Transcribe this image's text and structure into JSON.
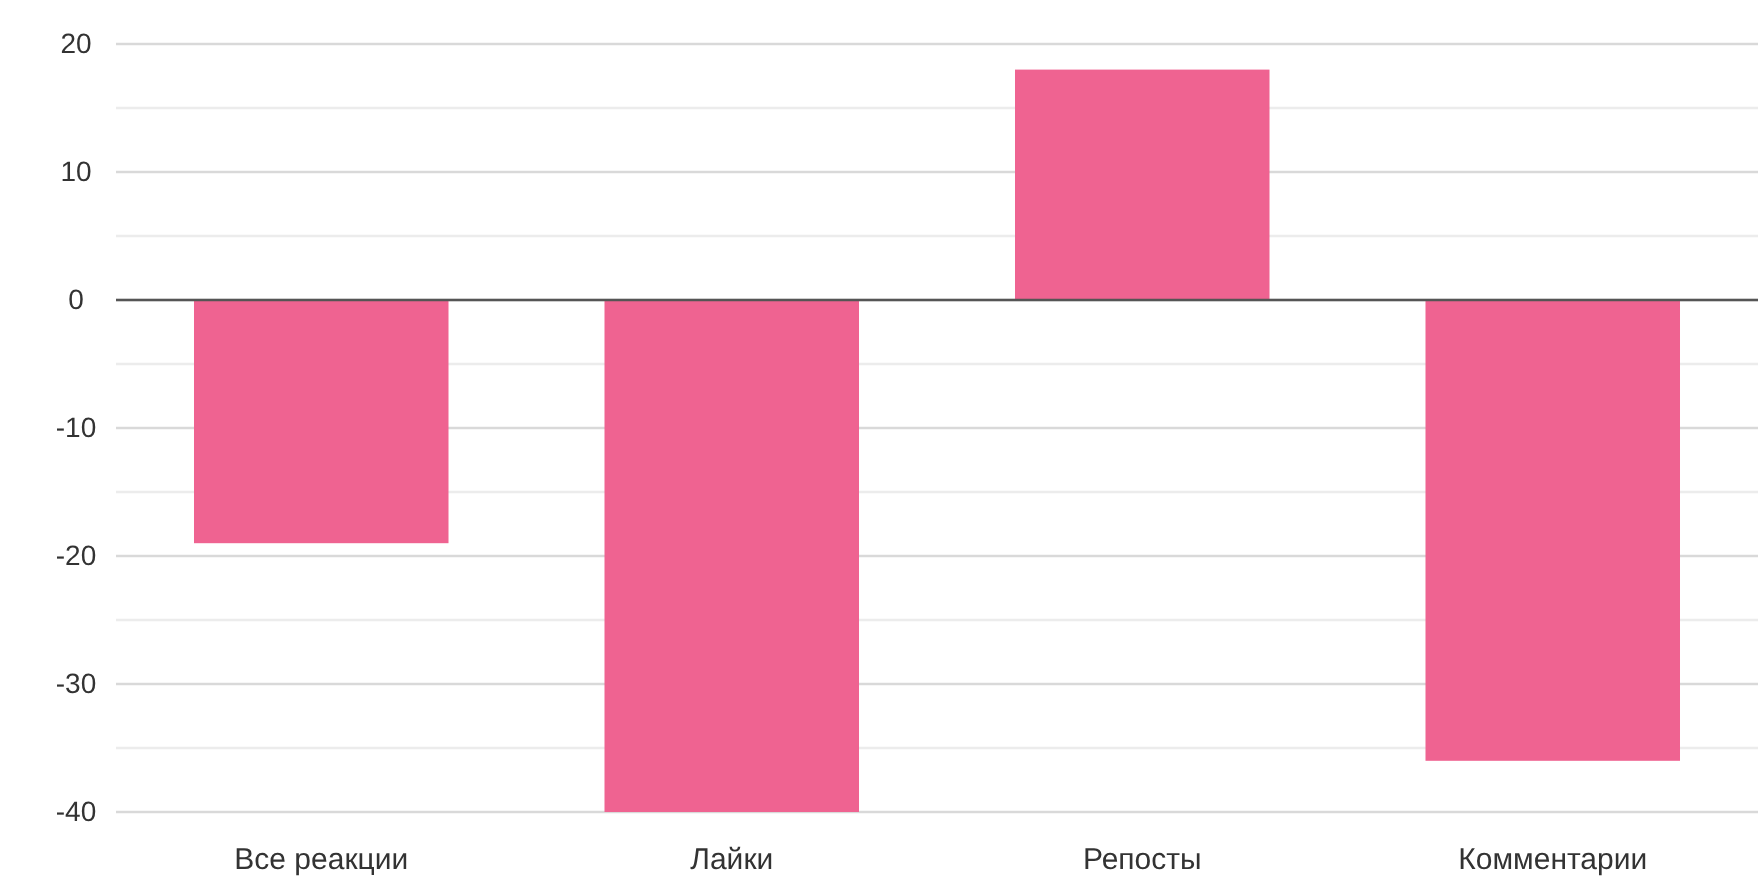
{
  "chart_data": {
    "type": "bar",
    "categories": [
      "Все реакции",
      "Лайки",
      "Репосты",
      "Комментарии"
    ],
    "values": [
      -19,
      -40,
      18,
      -36
    ],
    "color": "#ef6391",
    "ylim": [
      -40,
      20
    ],
    "yticks": [
      -40,
      {
        "value": -35,
        "label": null
      },
      -30,
      {
        "value": -25,
        "label": null
      },
      -20,
      {
        "value": -15,
        "label": null
      },
      -10,
      {
        "value": -5,
        "label": null
      },
      0,
      {
        "value": 5,
        "label": null
      },
      10,
      {
        "value": 15,
        "label": null
      },
      20
    ],
    "grid": "y"
  }
}
